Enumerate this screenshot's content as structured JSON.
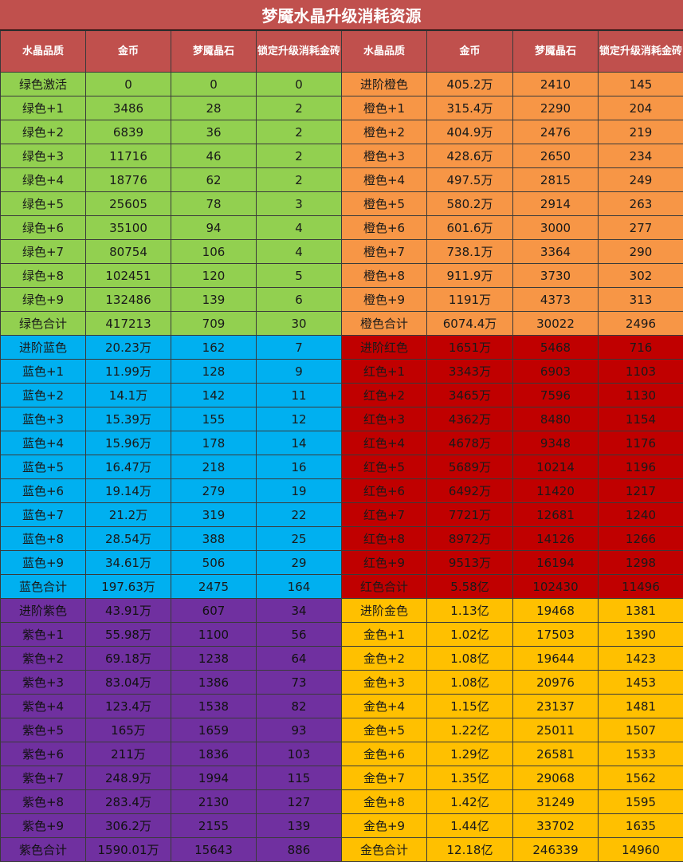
{
  "title": "梦魇水晶升级消耗资源",
  "headers": [
    "水晶品质",
    "金币",
    "梦魇晶石",
    "锁定升级消耗金砖",
    "水晶品质",
    "金币",
    "梦魇晶石",
    "锁定升级消耗金砖"
  ],
  "colors": {
    "header": "#c0504d",
    "green": "#92d050",
    "blue": "#00b0f0",
    "purple": "#7030a0",
    "orange": "#f79646",
    "red": "#c00000",
    "gold": "#ffc000"
  },
  "rows": [
    {
      "left": {
        "color": "green",
        "cells": [
          "绿色激活",
          "0",
          "0",
          "0"
        ]
      },
      "right": {
        "color": "orange",
        "cells": [
          "进阶橙色",
          "405.2万",
          "2410",
          "145"
        ]
      }
    },
    {
      "left": {
        "color": "green",
        "cells": [
          "绿色+1",
          "3486",
          "28",
          "2"
        ]
      },
      "right": {
        "color": "orange",
        "cells": [
          "橙色+1",
          "315.4万",
          "2290",
          "204"
        ]
      }
    },
    {
      "left": {
        "color": "green",
        "cells": [
          "绿色+2",
          "6839",
          "36",
          "2"
        ]
      },
      "right": {
        "color": "orange",
        "cells": [
          "橙色+2",
          "404.9万",
          "2476",
          "219"
        ]
      }
    },
    {
      "left": {
        "color": "green",
        "cells": [
          "绿色+3",
          "11716",
          "46",
          "2"
        ]
      },
      "right": {
        "color": "orange",
        "cells": [
          "橙色+3",
          "428.6万",
          "2650",
          "234"
        ]
      }
    },
    {
      "left": {
        "color": "green",
        "cells": [
          "绿色+4",
          "18776",
          "62",
          "2"
        ]
      },
      "right": {
        "color": "orange",
        "cells": [
          "橙色+4",
          "497.5万",
          "2815",
          "249"
        ]
      }
    },
    {
      "left": {
        "color": "green",
        "cells": [
          "绿色+5",
          "25605",
          "78",
          "3"
        ]
      },
      "right": {
        "color": "orange",
        "cells": [
          "橙色+5",
          "580.2万",
          "2914",
          "263"
        ]
      }
    },
    {
      "left": {
        "color": "green",
        "cells": [
          "绿色+6",
          "35100",
          "94",
          "4"
        ]
      },
      "right": {
        "color": "orange",
        "cells": [
          "橙色+6",
          "601.6万",
          "3000",
          "277"
        ]
      }
    },
    {
      "left": {
        "color": "green",
        "cells": [
          "绿色+7",
          "80754",
          "106",
          "4"
        ]
      },
      "right": {
        "color": "orange",
        "cells": [
          "橙色+7",
          "738.1万",
          "3364",
          "290"
        ]
      }
    },
    {
      "left": {
        "color": "green",
        "cells": [
          "绿色+8",
          "102451",
          "120",
          "5"
        ]
      },
      "right": {
        "color": "orange",
        "cells": [
          "橙色+8",
          "911.9万",
          "3730",
          "302"
        ]
      }
    },
    {
      "left": {
        "color": "green",
        "cells": [
          "绿色+9",
          "132486",
          "139",
          "6"
        ]
      },
      "right": {
        "color": "orange",
        "cells": [
          "橙色+9",
          "1191万",
          "4373",
          "313"
        ]
      }
    },
    {
      "left": {
        "color": "green",
        "cells": [
          "绿色合计",
          "417213",
          "709",
          "30"
        ]
      },
      "right": {
        "color": "orange",
        "cells": [
          "橙色合计",
          "6074.4万",
          "30022",
          "2496"
        ]
      }
    },
    {
      "left": {
        "color": "blue",
        "cells": [
          "进阶蓝色",
          "20.23万",
          "162",
          "7"
        ]
      },
      "right": {
        "color": "red",
        "cells": [
          "进阶红色",
          "1651万",
          "5468",
          "716"
        ]
      }
    },
    {
      "left": {
        "color": "blue",
        "cells": [
          "蓝色+1",
          "11.99万",
          "128",
          "9"
        ]
      },
      "right": {
        "color": "red",
        "cells": [
          "红色+1",
          "3343万",
          "6903",
          "1103"
        ]
      }
    },
    {
      "left": {
        "color": "blue",
        "cells": [
          "蓝色+2",
          "14.1万",
          "142",
          "11"
        ]
      },
      "right": {
        "color": "red",
        "cells": [
          "红色+2",
          "3465万",
          "7596",
          "1130"
        ]
      }
    },
    {
      "left": {
        "color": "blue",
        "cells": [
          "蓝色+3",
          "15.39万",
          "155",
          "12"
        ]
      },
      "right": {
        "color": "red",
        "cells": [
          "红色+3",
          "4362万",
          "8480",
          "1154"
        ]
      }
    },
    {
      "left": {
        "color": "blue",
        "cells": [
          "蓝色+4",
          "15.96万",
          "178",
          "14"
        ]
      },
      "right": {
        "color": "red",
        "cells": [
          "红色+4",
          "4678万",
          "9348",
          "1176"
        ]
      }
    },
    {
      "left": {
        "color": "blue",
        "cells": [
          "蓝色+5",
          "16.47万",
          "218",
          "16"
        ]
      },
      "right": {
        "color": "red",
        "cells": [
          "红色+5",
          "5689万",
          "10214",
          "1196"
        ]
      }
    },
    {
      "left": {
        "color": "blue",
        "cells": [
          "蓝色+6",
          "19.14万",
          "279",
          "19"
        ]
      },
      "right": {
        "color": "red",
        "cells": [
          "红色+6",
          "6492万",
          "11420",
          "1217"
        ]
      }
    },
    {
      "left": {
        "color": "blue",
        "cells": [
          "蓝色+7",
          "21.2万",
          "319",
          "22"
        ]
      },
      "right": {
        "color": "red",
        "cells": [
          "红色+7",
          "7721万",
          "12681",
          "1240"
        ]
      }
    },
    {
      "left": {
        "color": "blue",
        "cells": [
          "蓝色+8",
          "28.54万",
          "388",
          "25"
        ]
      },
      "right": {
        "color": "red",
        "cells": [
          "红色+8",
          "8972万",
          "14126",
          "1266"
        ]
      }
    },
    {
      "left": {
        "color": "blue",
        "cells": [
          "蓝色+9",
          "34.61万",
          "506",
          "29"
        ]
      },
      "right": {
        "color": "red",
        "cells": [
          "红色+9",
          "9513万",
          "16194",
          "1298"
        ]
      }
    },
    {
      "left": {
        "color": "blue",
        "cells": [
          "蓝色合计",
          "197.63万",
          "2475",
          "164"
        ]
      },
      "right": {
        "color": "red",
        "cells": [
          "红色合计",
          "5.58亿",
          "102430",
          "11496"
        ]
      }
    },
    {
      "left": {
        "color": "purple",
        "cells": [
          "进阶紫色",
          "43.91万",
          "607",
          "34"
        ]
      },
      "right": {
        "color": "gold",
        "cells": [
          "进阶金色",
          "1.13亿",
          "19468",
          "1381"
        ]
      }
    },
    {
      "left": {
        "color": "purple",
        "cells": [
          "紫色+1",
          "55.98万",
          "1100",
          "56"
        ]
      },
      "right": {
        "color": "gold",
        "cells": [
          "金色+1",
          "1.02亿",
          "17503",
          "1390"
        ]
      }
    },
    {
      "left": {
        "color": "purple",
        "cells": [
          "紫色+2",
          "69.18万",
          "1238",
          "64"
        ]
      },
      "right": {
        "color": "gold",
        "cells": [
          "金色+2",
          "1.08亿",
          "19644",
          "1423"
        ]
      }
    },
    {
      "left": {
        "color": "purple",
        "cells": [
          "紫色+3",
          "83.04万",
          "1386",
          "73"
        ]
      },
      "right": {
        "color": "gold",
        "cells": [
          "金色+3",
          "1.08亿",
          "20976",
          "1453"
        ]
      }
    },
    {
      "left": {
        "color": "purple",
        "cells": [
          "紫色+4",
          "123.4万",
          "1538",
          "82"
        ]
      },
      "right": {
        "color": "gold",
        "cells": [
          "金色+4",
          "1.15亿",
          "23137",
          "1481"
        ]
      }
    },
    {
      "left": {
        "color": "purple",
        "cells": [
          "紫色+5",
          "165万",
          "1659",
          "93"
        ]
      },
      "right": {
        "color": "gold",
        "cells": [
          "金色+5",
          "1.22亿",
          "25011",
          "1507"
        ]
      }
    },
    {
      "left": {
        "color": "purple",
        "cells": [
          "紫色+6",
          "211万",
          "1836",
          "103"
        ]
      },
      "right": {
        "color": "gold",
        "cells": [
          "金色+6",
          "1.29亿",
          "26581",
          "1533"
        ]
      }
    },
    {
      "left": {
        "color": "purple",
        "cells": [
          "紫色+7",
          "248.9万",
          "1994",
          "115"
        ]
      },
      "right": {
        "color": "gold",
        "cells": [
          "金色+7",
          "1.35亿",
          "29068",
          "1562"
        ]
      }
    },
    {
      "left": {
        "color": "purple",
        "cells": [
          "紫色+8",
          "283.4万",
          "2130",
          "127"
        ]
      },
      "right": {
        "color": "gold",
        "cells": [
          "金色+8",
          "1.42亿",
          "31249",
          "1595"
        ]
      }
    },
    {
      "left": {
        "color": "purple",
        "cells": [
          "紫色+9",
          "306.2万",
          "2155",
          "139"
        ]
      },
      "right": {
        "color": "gold",
        "cells": [
          "金色+9",
          "1.44亿",
          "33702",
          "1635"
        ]
      }
    },
    {
      "left": {
        "color": "purple",
        "cells": [
          "紫色合计",
          "1590.01万",
          "15643",
          "886"
        ]
      },
      "right": {
        "color": "gold",
        "cells": [
          "金色合计",
          "12.18亿",
          "246339",
          "14960"
        ]
      }
    }
  ]
}
